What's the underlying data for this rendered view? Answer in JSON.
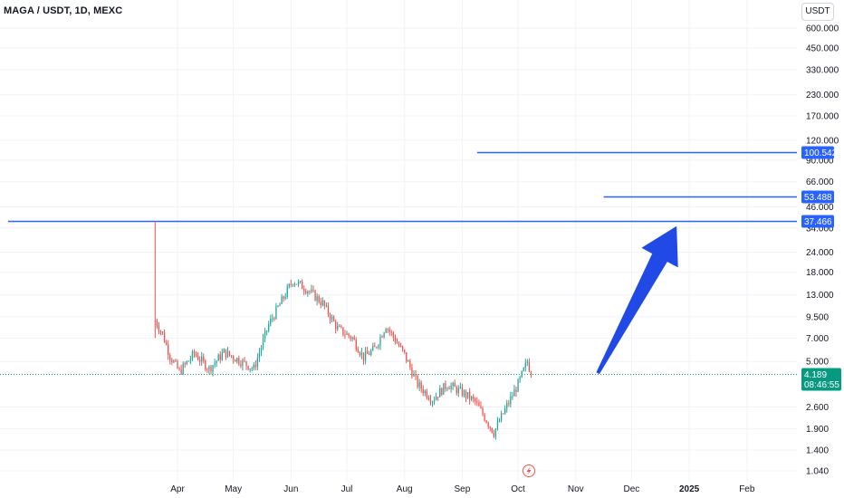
{
  "header": {
    "title": "MAGA / USDT, 1D, MEXC"
  },
  "currency_button": "USDT",
  "colors": {
    "up": "#26a69a",
    "down": "#ef5350",
    "line": "#2962ff",
    "arrow": "#2149e6",
    "price_tag": "#089981",
    "last_price_line": "#089981",
    "marker": "#ef5350"
  },
  "marker_icon": "lightning-bolt-icon",
  "chart_data": {
    "type": "candlestick",
    "scale": "log",
    "ylim": [
      1.0,
      640
    ],
    "y_ticks": [
      "600.000",
      "450.000",
      "330.000",
      "230.000",
      "170.000",
      "120.000",
      "90.000",
      "66.000",
      "46.000",
      "34.000",
      "24.000",
      "18.000",
      "13.000",
      "9.500",
      "7.000",
      "5.000",
      "2.600",
      "1.900",
      "1.400",
      "1.040"
    ],
    "x_ticks": [
      {
        "label": "Apr",
        "date": "2024-04-01"
      },
      {
        "label": "May",
        "date": "2024-05-01"
      },
      {
        "label": "Jun",
        "date": "2024-06-01"
      },
      {
        "label": "Jul",
        "date": "2024-07-01"
      },
      {
        "label": "Aug",
        "date": "2024-08-01"
      },
      {
        "label": "Sep",
        "date": "2024-09-01"
      },
      {
        "label": "Oct",
        "date": "2024-10-01"
      },
      {
        "label": "Nov",
        "date": "2024-11-01"
      },
      {
        "label": "Dec",
        "date": "2024-12-01"
      },
      {
        "label": "2025",
        "date": "2025-01-01",
        "bold": true
      },
      {
        "label": "Feb",
        "date": "2025-02-01"
      }
    ],
    "horizontal_levels": [
      {
        "value": 100.542,
        "label": "100.542",
        "from_date": "2024-09-09"
      },
      {
        "value": 53.488,
        "label": "53.488",
        "from_date": "2024-11-16"
      },
      {
        "value": 37.466,
        "label": "37.466",
        "from_date": "2024-01-01"
      }
    ],
    "last_price": {
      "value": 4.189,
      "label": "4.189",
      "countdown": "08:46:55"
    },
    "arrow": {
      "from": {
        "date": "2024-11-13",
        "value": 4.25
      },
      "to": {
        "date": "2024-12-25",
        "value": 34.5
      }
    },
    "anchors": [
      {
        "date": "2024-03-20",
        "value": 9.0
      },
      {
        "date": "2024-03-24",
        "value": 7.4
      },
      {
        "date": "2024-03-28",
        "value": 5.4
      },
      {
        "date": "2024-04-02",
        "value": 4.3
      },
      {
        "date": "2024-04-10",
        "value": 5.6
      },
      {
        "date": "2024-04-18",
        "value": 4.5
      },
      {
        "date": "2024-04-26",
        "value": 5.7
      },
      {
        "date": "2024-05-04",
        "value": 5.1
      },
      {
        "date": "2024-05-12",
        "value": 4.5
      },
      {
        "date": "2024-05-20",
        "value": 8.5
      },
      {
        "date": "2024-05-28",
        "value": 12.5
      },
      {
        "date": "2024-06-02",
        "value": 16.0
      },
      {
        "date": "2024-06-10",
        "value": 14.0
      },
      {
        "date": "2024-06-18",
        "value": 11.5
      },
      {
        "date": "2024-06-26",
        "value": 8.0
      },
      {
        "date": "2024-07-04",
        "value": 7.0
      },
      {
        "date": "2024-07-10",
        "value": 5.3
      },
      {
        "date": "2024-07-16",
        "value": 6.0
      },
      {
        "date": "2024-07-22",
        "value": 8.4
      },
      {
        "date": "2024-08-01",
        "value": 5.5
      },
      {
        "date": "2024-08-08",
        "value": 3.6
      },
      {
        "date": "2024-08-16",
        "value": 2.9
      },
      {
        "date": "2024-08-24",
        "value": 3.6
      },
      {
        "date": "2024-09-01",
        "value": 3.2
      },
      {
        "date": "2024-09-08",
        "value": 2.8
      },
      {
        "date": "2024-09-18",
        "value": 1.8
      },
      {
        "date": "2024-09-24",
        "value": 2.5
      },
      {
        "date": "2024-10-01",
        "value": 3.6
      },
      {
        "date": "2024-10-06",
        "value": 5.0
      },
      {
        "date": "2024-10-08",
        "value": 4.189
      }
    ]
  }
}
